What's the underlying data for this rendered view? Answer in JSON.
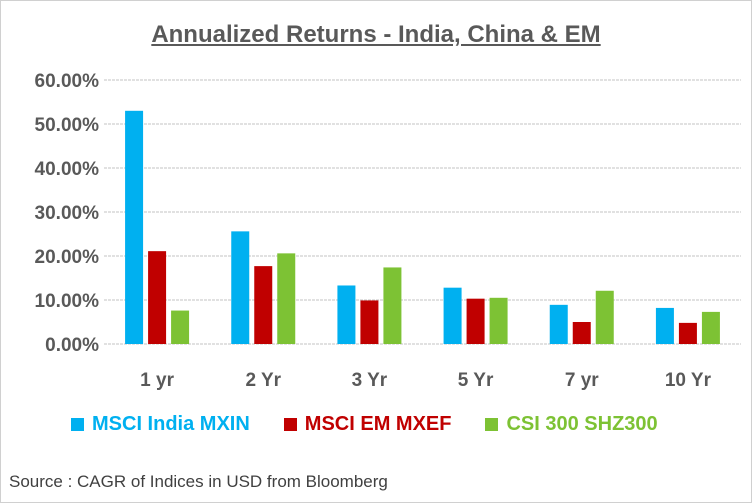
{
  "chart_data": {
    "type": "bar",
    "title": "Annualized Returns - India, China & EM",
    "categories": [
      "1 yr",
      "2 Yr",
      "3 Yr",
      "5 Yr",
      "7 yr",
      "10 Yr"
    ],
    "series": [
      {
        "name": "MSCI India MXIN",
        "color": "#00B0F0",
        "values": [
          53.0,
          25.6,
          13.3,
          12.8,
          8.9,
          8.2
        ]
      },
      {
        "name": "MSCI EM MXEF",
        "color": "#C00000",
        "values": [
          21.1,
          17.7,
          9.9,
          10.3,
          5.0,
          4.8
        ]
      },
      {
        "name": "CSI 300 SHZ300",
        "color": "#7DC234",
        "values": [
          7.6,
          20.6,
          17.4,
          10.5,
          12.1,
          7.3
        ]
      }
    ],
    "ylim": [
      0,
      60
    ],
    "yticks": [
      "0.00%",
      "10.00%",
      "20.00%",
      "30.00%",
      "40.00%",
      "50.00%",
      "60.00%"
    ],
    "grid": true,
    "legend": "bottom",
    "xlabel": "",
    "ylabel": ""
  },
  "source": "Source : CAGR of Indices in USD from Bloomberg"
}
